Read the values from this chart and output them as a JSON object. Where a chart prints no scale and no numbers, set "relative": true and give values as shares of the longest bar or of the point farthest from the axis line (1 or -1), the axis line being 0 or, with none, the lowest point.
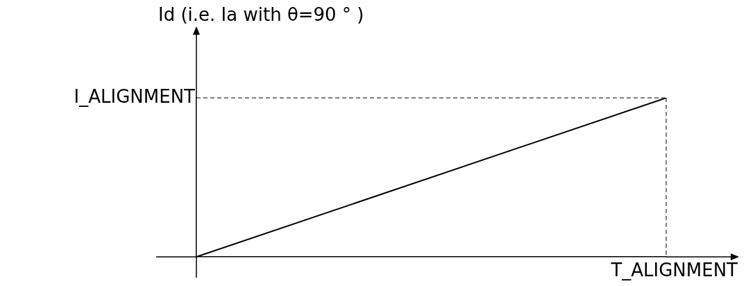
{
  "chart_data": {
    "type": "line",
    "ylabel": "Id (i.e. Ia with θ=90 ° )",
    "categories": [
      null,
      null
    ],
    "relative": true,
    "marker": "none",
    "grid": false,
    "legend": false,
    "annotations": [
      "I_ALIGNMENT",
      "T_ALIGNMENT"
    ],
    "series": [
      {
        "color": "#000000",
        "values": [
          0,
          1
        ]
      }
    ],
    "ref_lines": [
      {
        "axis": "y",
        "value": 1,
        "line_style": "dashed",
        "color": "#000000"
      }
    ]
  }
}
